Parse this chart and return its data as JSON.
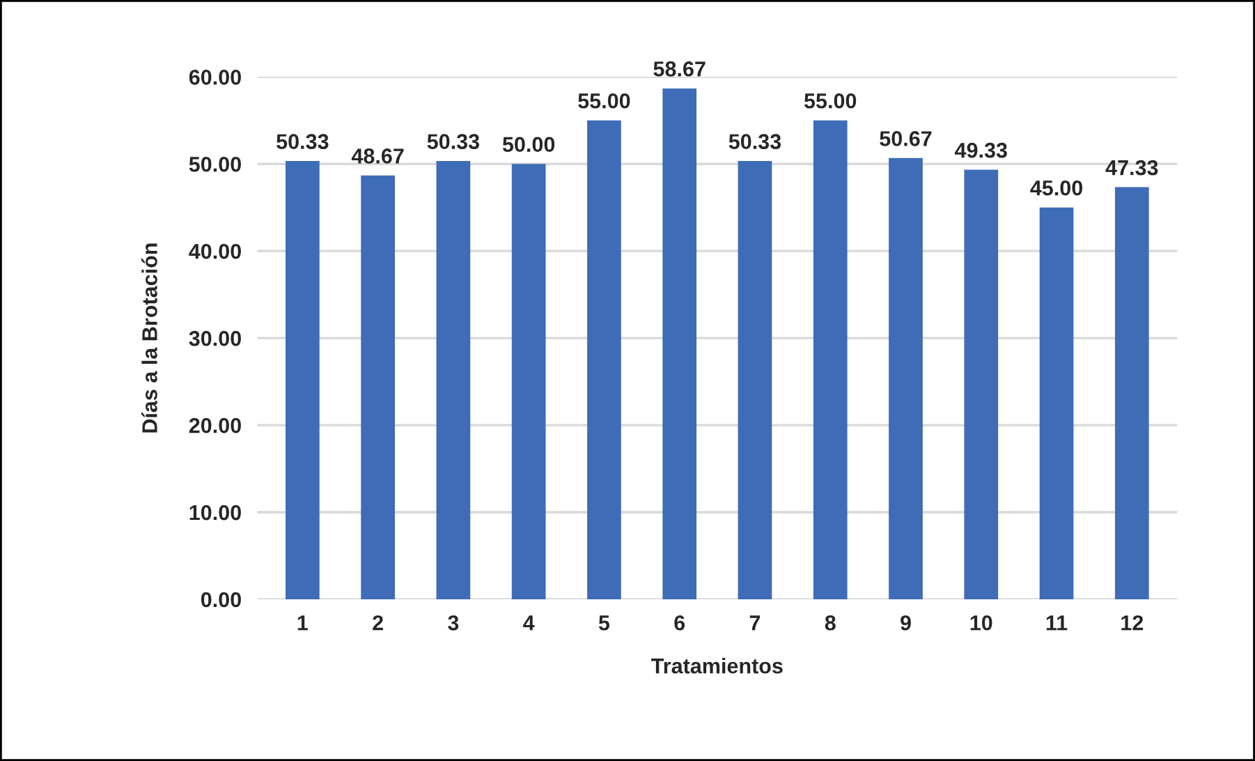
{
  "chart_data": {
    "type": "bar",
    "xlabel": "Tratamientos",
    "ylabel": "Días a la Brotación",
    "categories": [
      "1",
      "2",
      "3",
      "4",
      "5",
      "6",
      "7",
      "8",
      "9",
      "10",
      "11",
      "12"
    ],
    "values": [
      50.33,
      48.67,
      50.33,
      50.0,
      55.0,
      58.67,
      50.33,
      55.0,
      50.67,
      49.33,
      45.0,
      47.33
    ],
    "value_labels": [
      "50.33",
      "48.67",
      "50.33",
      "50.00",
      "55.00",
      "58.67",
      "50.33",
      "55.00",
      "50.67",
      "49.33",
      "45.00",
      "47.33"
    ],
    "color": "#3f6cb6",
    "ylim": [
      0,
      60
    ],
    "yticks": [
      {
        "value": 0,
        "label": "0.00"
      },
      {
        "value": 10,
        "label": "10.00"
      },
      {
        "value": 20,
        "label": "20.00"
      },
      {
        "value": 30,
        "label": "30.00"
      },
      {
        "value": 40,
        "label": "40.00"
      },
      {
        "value": 50,
        "label": "50.00"
      },
      {
        "value": 60,
        "label": "60.00"
      }
    ],
    "grid": "y"
  }
}
